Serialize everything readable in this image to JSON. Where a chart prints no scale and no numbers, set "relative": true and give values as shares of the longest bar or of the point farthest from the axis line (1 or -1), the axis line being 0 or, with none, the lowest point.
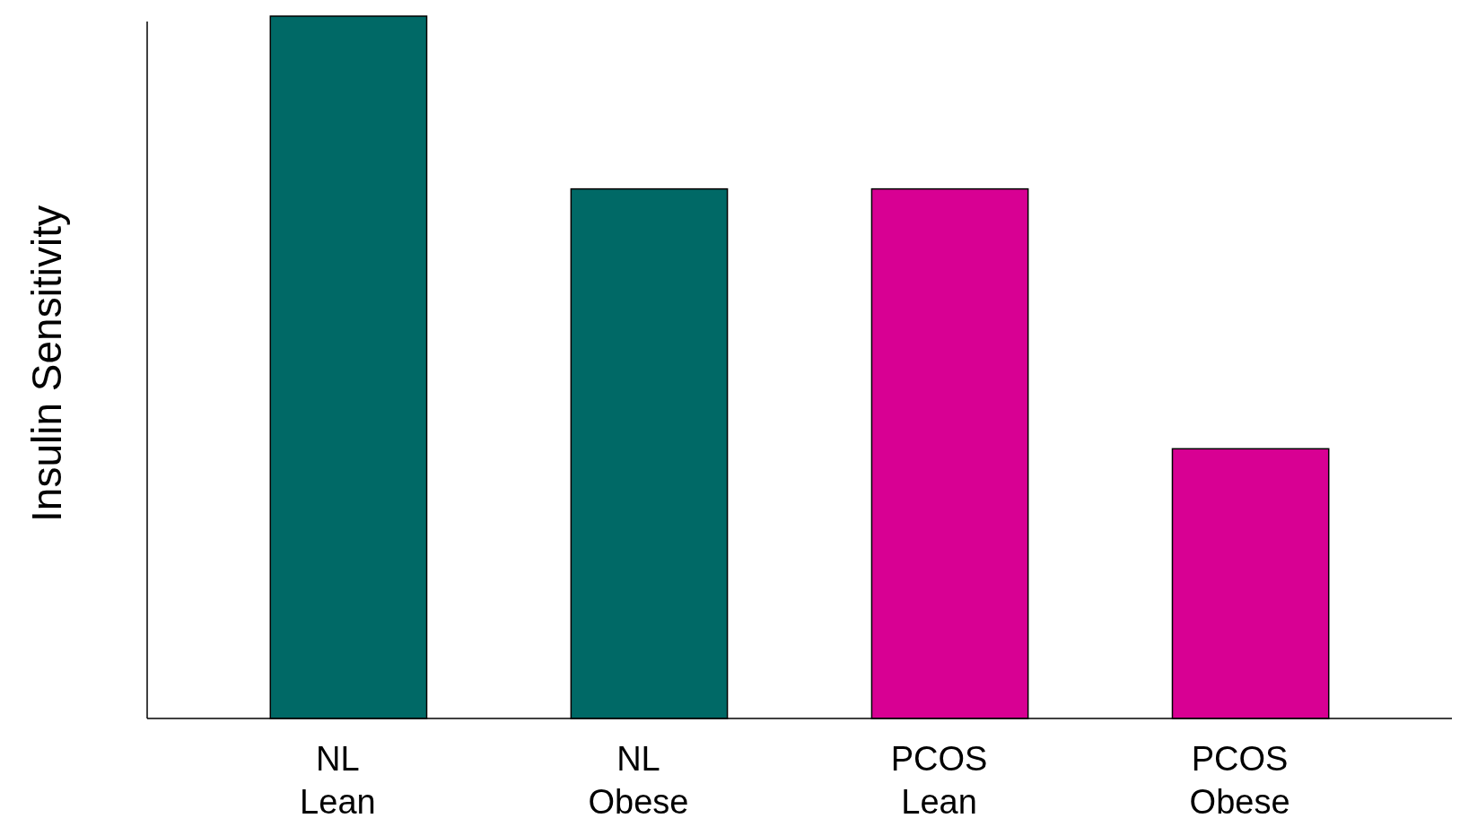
{
  "chart_data": {
    "type": "bar",
    "ylabel": "Insulin Sensitivity",
    "relative": true,
    "categories": [
      "NL\nLean",
      "NL\nObese",
      "PCOS\nLean",
      "PCOS\nObese"
    ],
    "values": [
      1,
      0.754,
      0.754,
      0.384
    ],
    "colors": [
      "#006966",
      "#006966",
      "#d80093",
      "#d80093"
    ]
  }
}
